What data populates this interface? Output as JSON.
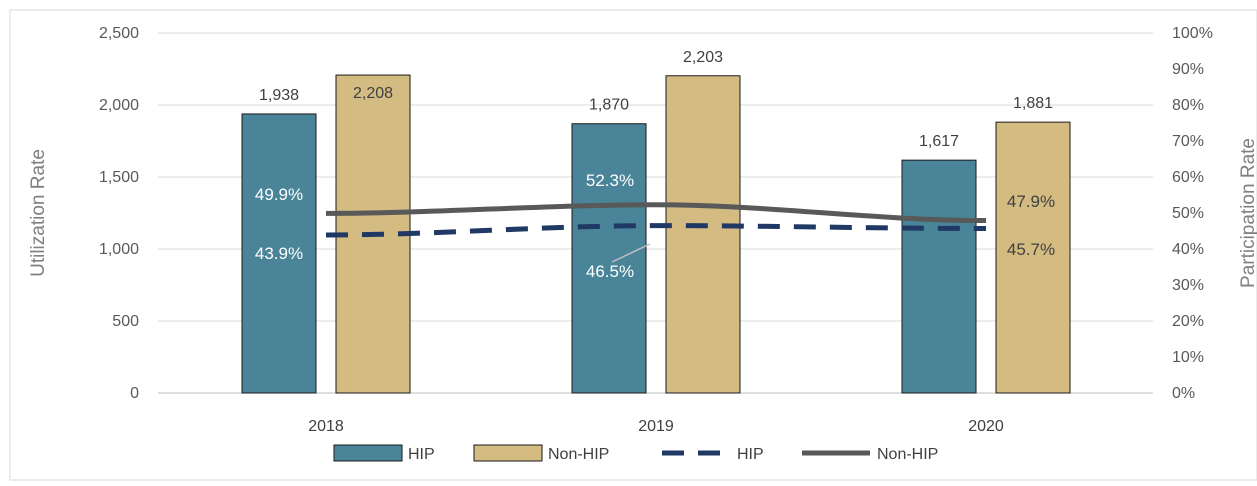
{
  "chart_data": {
    "type": "bar",
    "categories": [
      "2018",
      "2019",
      "2020"
    ],
    "series": [
      {
        "name": "HIP",
        "kind": "bar",
        "axis": "left",
        "values": [
          1938,
          1870,
          1617
        ],
        "labels": [
          "1,938",
          "1,870",
          "1,617"
        ],
        "color": "#4a8499"
      },
      {
        "name": "Non-HIP",
        "kind": "bar",
        "axis": "left",
        "values": [
          2208,
          2203,
          1881
        ],
        "labels": [
          "2,208",
          "2,203",
          "1,881"
        ],
        "color": "#d3bb82"
      },
      {
        "name": "HIP",
        "kind": "line",
        "style": "dashed",
        "axis": "right",
        "values": [
          43.9,
          46.5,
          45.7
        ],
        "labels": [
          "43.9%",
          "46.5%",
          "45.7%"
        ],
        "color": "#1f3864"
      },
      {
        "name": "Non-HIP",
        "kind": "line",
        "style": "solid",
        "axis": "right",
        "values": [
          49.9,
          52.3,
          47.9
        ],
        "labels": [
          "49.9%",
          "52.3%",
          "47.9%"
        ],
        "color": "#595959"
      }
    ],
    "y_left": {
      "label": "Utilization Rate",
      "range": [
        0,
        2500
      ],
      "ticks": [
        0,
        500,
        1000,
        1500,
        2000,
        2500
      ],
      "tick_labels": [
        "0",
        "500",
        "1,000",
        "1,500",
        "2,000",
        "2,500"
      ]
    },
    "y_right": {
      "label": "Participation Rate",
      "range": [
        0,
        100
      ],
      "ticks": [
        0,
        10,
        20,
        30,
        40,
        50,
        60,
        70,
        80,
        90,
        100
      ],
      "tick_labels": [
        "0%",
        "10%",
        "20%",
        "30%",
        "40%",
        "50%",
        "60%",
        "70%",
        "80%",
        "90%",
        "100%"
      ]
    },
    "grid": true,
    "legend": {
      "position": "bottom",
      "entries": [
        "HIP",
        "Non-HIP",
        "HIP",
        "Non-HIP"
      ]
    }
  }
}
